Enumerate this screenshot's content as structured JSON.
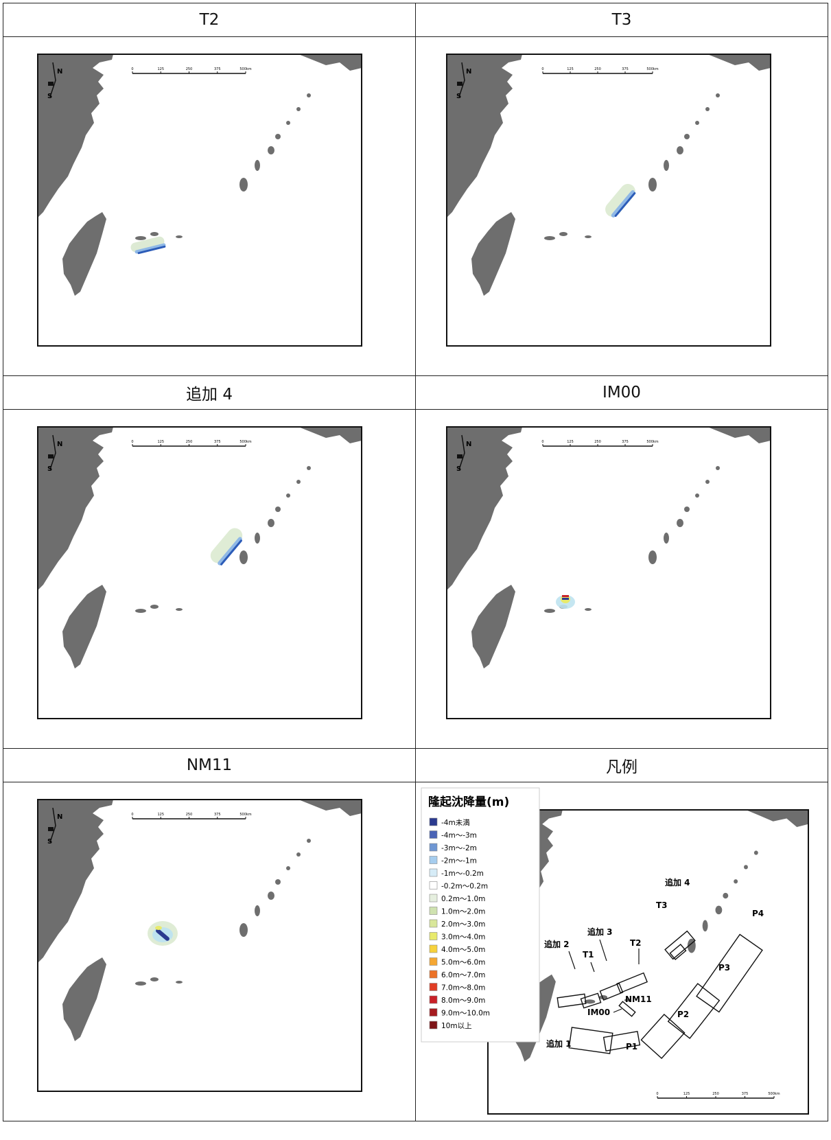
{
  "panels": [
    {
      "title": "T2",
      "show_scalebar": true
    },
    {
      "title": "T3",
      "show_scalebar": true
    },
    {
      "title": "追加 4",
      "show_scalebar": true
    },
    {
      "title": "IM00",
      "show_scalebar": true
    },
    {
      "title": "NM11",
      "show_scalebar": true
    },
    {
      "title": "凡例"
    }
  ],
  "north_arrow": {
    "n": "N",
    "s": "S"
  },
  "scale_bar": {
    "ticks": [
      "0",
      "125",
      "250",
      "375",
      "500km"
    ]
  },
  "legend": {
    "title": "隆起沈降量(m)",
    "items": [
      {
        "label": "-4m未満",
        "color": "#2b3a8f"
      },
      {
        "label": "-4m～-3m",
        "color": "#4a63b5"
      },
      {
        "label": "-3m～-2m",
        "color": "#6f97d3"
      },
      {
        "label": "-2m～-1m",
        "color": "#a6cdee"
      },
      {
        "label": "-1m～-0.2m",
        "color": "#d6ecf7"
      },
      {
        "label": "-0.2m～0.2m",
        "color": "#ffffff"
      },
      {
        "label": "0.2m～1.0m",
        "color": "#e6efdf"
      },
      {
        "label": "1.0m～2.0m",
        "color": "#cfe2b0"
      },
      {
        "label": "2.0m～3.0m",
        "color": "#d9e79a"
      },
      {
        "label": "3.0m～4.0m",
        "color": "#e8ea6c"
      },
      {
        "label": "4.0m～5.0m",
        "color": "#f7d23c"
      },
      {
        "label": "5.0m～6.0m",
        "color": "#f5a733"
      },
      {
        "label": "6.0m～7.0m",
        "color": "#ec7227"
      },
      {
        "label": "7.0m～8.0m",
        "color": "#e13d25"
      },
      {
        "label": "8.0m～9.0m",
        "color": "#c92128"
      },
      {
        "label": "9.0m～10.0m",
        "color": "#a61b1f"
      },
      {
        "label": "10m以上",
        "color": "#7e1518"
      }
    ]
  },
  "fault_labels": [
    "追加 4",
    "T3",
    "P4",
    "追加 3",
    "T2",
    "追加 2",
    "T1",
    "P3",
    "NM11",
    "IM00",
    "P2",
    "追加 1",
    "P1"
  ],
  "colors": {
    "land": "#6e6e6e",
    "frame": "#111111"
  }
}
